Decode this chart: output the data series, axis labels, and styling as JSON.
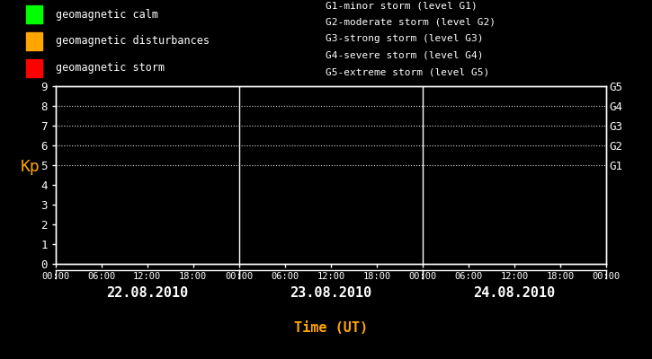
{
  "bg_color": "#000000",
  "text_color": "#ffffff",
  "orange_color": "#ffa500",
  "title_xlabel": "Time (UT)",
  "ylabel": "Kp",
  "ylim": [
    0,
    9
  ],
  "yticks": [
    0,
    1,
    2,
    3,
    4,
    5,
    6,
    7,
    8,
    9
  ],
  "days": [
    "22.08.2010",
    "23.08.2010",
    "24.08.2010"
  ],
  "time_ticks_labels": [
    "00:00",
    "06:00",
    "12:00",
    "18:00",
    "00:00",
    "06:00",
    "12:00",
    "18:00",
    "00:00",
    "06:00",
    "12:00",
    "18:00",
    "00:00"
  ],
  "right_labels": [
    "G5",
    "G4",
    "G3",
    "G2",
    "G1"
  ],
  "right_label_yvals": [
    9,
    8,
    7,
    6,
    5
  ],
  "g_lines_y": [
    9,
    8,
    7,
    6,
    5
  ],
  "legend_calm_color": "#00ff00",
  "legend_disturbance_color": "#ffa500",
  "legend_storm_color": "#ff0000",
  "legend_labels": [
    "geomagnetic calm",
    "geomagnetic disturbances",
    "geomagnetic storm"
  ],
  "g_legend_lines": [
    "G1-minor storm (level G1)",
    "G2-moderate storm (level G2)",
    "G3-strong storm (level G3)",
    "G4-severe storm (level G4)",
    "G5-extreme storm (level G5)"
  ]
}
